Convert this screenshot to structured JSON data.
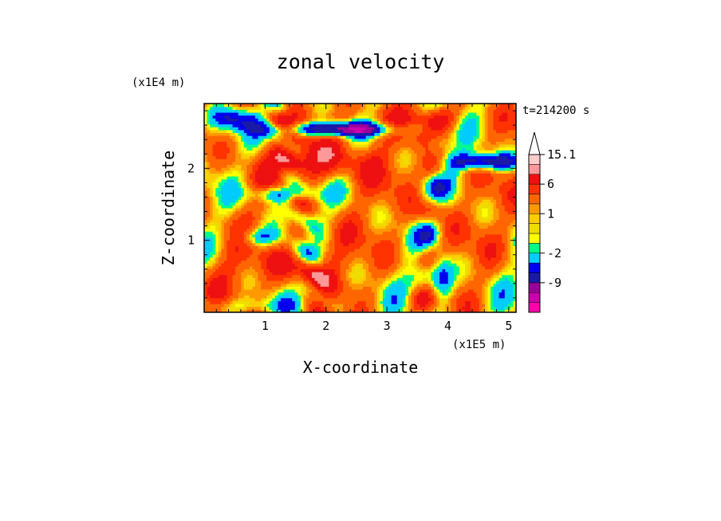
{
  "chart_data": {
    "type": "heatmap",
    "title": "zonal velocity",
    "xlabel": "X-coordinate",
    "ylabel": "Z-coordinate",
    "x_unit": "(x1E5 m)",
    "y_unit": "(x1E4 m)",
    "time_label": "t=214200 s",
    "xlim": [
      0,
      5.12
    ],
    "ylim": [
      0,
      2.9
    ],
    "x_ticks": [
      1,
      2,
      3,
      4,
      5
    ],
    "y_ticks": [
      1,
      2
    ],
    "colorbar": {
      "levels": [
        -15,
        -12,
        -9,
        -6,
        -4,
        -2,
        -1,
        0,
        0.5,
        1,
        2,
        4,
        6,
        9,
        12,
        15.1
      ],
      "colors": [
        "#ff00aa",
        "#cc00aa",
        "#990099",
        "#1a1aa6",
        "#0000ee",
        "#00ccff",
        "#00ff88",
        "#ffff00",
        "#eedd00",
        "#ffcc00",
        "#ff9900",
        "#ff6600",
        "#ff3300",
        "#ee1111",
        "#ff9999",
        "#ffcccc"
      ],
      "labels": [
        {
          "value": "15.1",
          "index": 15
        },
        {
          "value": "6",
          "index": 12
        },
        {
          "value": "1",
          "index": 9
        },
        {
          "value": "-2",
          "index": 5
        },
        {
          "value": "-9",
          "index": 2
        }
      ]
    },
    "grid": false,
    "legend": "colorbar-right"
  }
}
